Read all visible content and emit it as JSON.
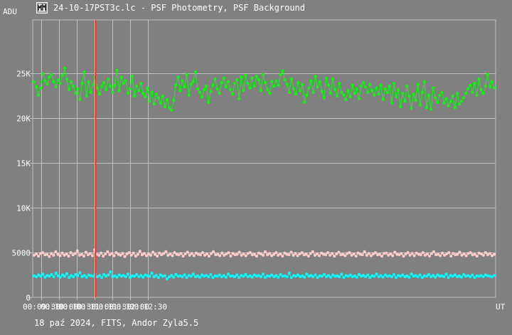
{
  "window": {
    "title": "24-10-17PST3c.lc - PSF Photometry, PSF Background",
    "icon": "light-curve-app-icon"
  },
  "footer": {
    "text": "18 paź 2024, FITS, Andor Zyla5.5"
  },
  "chart_data": {
    "type": "line",
    "ylabel": "ADU",
    "xlabel": "UT",
    "y_ticks": [
      {
        "value": 0,
        "label": "0"
      },
      {
        "value": 5000,
        "label": "5000"
      },
      {
        "value": 10000,
        "label": "10K"
      },
      {
        "value": 15000,
        "label": "15K"
      },
      {
        "value": 20000,
        "label": "20K"
      },
      {
        "value": 25000,
        "label": "25K"
      }
    ],
    "ylim": [
      0,
      31000
    ],
    "x_range_sec": [
      34156,
      34936
    ],
    "x_ticks": [
      {
        "value": 34170,
        "label": "00:09:30"
      },
      {
        "value": 34200,
        "label": "00:10:00"
      },
      {
        "value": 34230,
        "label": "00:10:30"
      },
      {
        "value": 34260,
        "label": "00:11:00"
      },
      {
        "value": 34290,
        "label": "00:11:30"
      },
      {
        "value": 34320,
        "label": "00:12:00"
      },
      {
        "value": 34350,
        "label": "00:12:30"
      }
    ],
    "cursor_x": 34262,
    "grid": true,
    "colors": {
      "background": "#808080",
      "grid": "#c0c0c0",
      "cursor": "#ff0000",
      "axis_text": "#ffffff"
    },
    "series": [
      {
        "color": "#00ff00",
        "values": [
          24100,
          23500,
          22600,
          23400,
          25000,
          24200,
          23800,
          24600,
          24900,
          24100,
          23500,
          24300,
          23900,
          24800,
          25600,
          24400,
          23200,
          24100,
          23600,
          22800,
          23300,
          22100,
          23900,
          25200,
          22500,
          24100,
          22900,
          23800,
          24600,
          23400,
          22700,
          23600,
          24000,
          23200,
          24400,
          23600,
          22900,
          23700,
          25400,
          23100,
          24600,
          23900,
          24200,
          22800,
          23300,
          24700,
          22500,
          23600,
          23100,
          23900,
          22800,
          22400,
          23400,
          21900,
          22900,
          21600,
          22700,
          22300,
          21700,
          22500,
          21300,
          22100,
          21200,
          20900,
          22000,
          23700,
          24600,
          23100,
          24200,
          23500,
          24900,
          22600,
          23800,
          24100,
          25200,
          23300,
          22900,
          22400,
          23200,
          23600,
          21800,
          23000,
          23700,
          24400,
          23300,
          22800,
          24000,
          24500,
          23500,
          24100,
          23200,
          22700,
          23900,
          24300,
          22200,
          24600,
          23100,
          24800,
          23900,
          23400,
          24500,
          23600,
          24700,
          24300,
          23100,
          24900,
          24000,
          23200,
          22800,
          24100,
          23600,
          24200,
          23700,
          24900,
          25300,
          24300,
          23800,
          22900,
          24400,
          23300,
          22700,
          24000,
          23100,
          23800,
          21800,
          22600,
          23400,
          24200,
          22900,
          24700,
          23500,
          24100,
          23000,
          22300,
          24500,
          23700,
          22800,
          24400,
          23200,
          22500,
          23900,
          22900,
          22600,
          22100,
          23100,
          22400,
          23700,
          22800,
          23300,
          22200,
          23600,
          24000,
          23500,
          22900,
          23800,
          23100,
          22600,
          23400,
          22700,
          23700,
          22100,
          23300,
          22900,
          23600,
          21700,
          23900,
          22400,
          23200,
          21300,
          22800,
          21900,
          23600,
          22500,
          21100,
          22700,
          22000,
          23800,
          21500,
          22900,
          24100,
          21200,
          22600,
          21000,
          23400,
          22300,
          21800,
          22600,
          22900,
          21700,
          22200,
          21400,
          21900,
          22500,
          21200,
          22800,
          21600,
          21900,
          22300,
          22800,
          23300,
          23700,
          22900,
          23900,
          22600,
          24400,
          23200,
          22800,
          23600,
          24900,
          23500,
          24100,
          23400
        ],
        "markers": true
      },
      {
        "color": "#ffcccc",
        "values": [
          4700,
          4850,
          4600,
          4900,
          5000,
          4750,
          4800,
          4550,
          4900,
          4700,
          5100,
          4800,
          4650,
          4950,
          4700,
          4850,
          4600,
          5000,
          4750,
          4900,
          5200,
          4700,
          4800,
          4600,
          5050,
          4750,
          4900,
          4650,
          5300,
          4800,
          4700,
          4950,
          4600,
          4850,
          5100,
          4750,
          4900,
          4650,
          5000,
          4800,
          4700,
          4900,
          4550,
          4850,
          5000,
          4700,
          4950,
          4600,
          4800,
          5150,
          4750,
          4900,
          4650,
          4850,
          4700,
          5050,
          4800,
          4600,
          4950,
          4750,
          4900,
          5100,
          4700,
          4850,
          4650,
          5000,
          4800,
          4750,
          4900,
          4600,
          4850,
          5050,
          4700,
          4900,
          4650,
          4950,
          4800,
          4750,
          5000,
          4700,
          4850,
          4600,
          4900,
          5100,
          4750,
          4800,
          4650,
          4950,
          4700,
          4850,
          5000,
          4600,
          4900,
          4750,
          4800,
          5050,
          4700,
          4850,
          4650,
          4900,
          5000,
          4750,
          4800,
          4600,
          4950,
          4850,
          4700,
          5100,
          4750,
          4900,
          4650,
          4800,
          5000,
          4700,
          4850,
          4600,
          4950,
          4800,
          4750,
          5050,
          4700,
          4900,
          4650,
          4850,
          5000,
          4750,
          4800,
          4600,
          4900,
          5100,
          4700,
          4850,
          4650,
          4950,
          4800,
          4750,
          5000,
          4700,
          4900,
          4600,
          4850,
          5050,
          4750,
          4800,
          4650,
          4900,
          5000,
          4700,
          4850,
          4600,
          4950,
          4800,
          4750,
          5100,
          4700,
          4900,
          4650,
          4850,
          5000,
          4750,
          4800,
          4600,
          4900,
          4950,
          4700,
          4850,
          4650,
          5050,
          4800,
          4750,
          4900,
          4600,
          4850,
          5000,
          4700,
          4900,
          4650,
          4950,
          4800,
          4750,
          5000,
          4700,
          4850,
          4600,
          4900,
          5100,
          4750,
          4800,
          4650,
          4950,
          4700,
          4850,
          5000,
          4600,
          4900,
          4750,
          4800,
          5050,
          4700,
          4850,
          4650,
          4900,
          5000,
          4750,
          4800,
          4600,
          4950,
          4850,
          4700,
          5000,
          4750,
          4900,
          4650,
          4800
        ],
        "markers": true
      },
      {
        "color": "#00ffff",
        "values": [
          2400,
          2300,
          2500,
          2350,
          2600,
          2250,
          2450,
          2350,
          2550,
          2300,
          2700,
          2400,
          2250,
          2500,
          2350,
          2650,
          2200,
          2450,
          2300,
          2550,
          2400,
          2750,
          2300,
          2450,
          2250,
          2500,
          2400,
          2350,
          2600,
          2300,
          2450,
          2200,
          2550,
          2350,
          2500,
          2850,
          2300,
          2400,
          2250,
          2500,
          2350,
          2450,
          2300,
          2600,
          2200,
          2400,
          2350,
          2550,
          2300,
          2450,
          2250,
          2500,
          2400,
          2350,
          2700,
          2300,
          2450,
          2200,
          2500,
          2350,
          2400,
          2050,
          2300,
          2450,
          2250,
          2550,
          2350,
          2400,
          2300,
          2500,
          2200,
          2450,
          2350,
          2600,
          2300,
          2400,
          2250,
          2500,
          2350,
          2450,
          2300,
          2550,
          2200,
          2400,
          2350,
          2500,
          2300,
          2450,
          2250,
          2600,
          2350,
          2400,
          2300,
          2500,
          2200,
          2450,
          2350,
          2550,
          2300,
          2400,
          2250,
          2500,
          2350,
          2450,
          2300,
          2600,
          2200,
          2400,
          2350,
          2500,
          2300,
          2450,
          2250,
          2550,
          2350,
          2400,
          2300,
          2700,
          2200,
          2450,
          2350,
          2500,
          2300,
          2400,
          2250,
          2600,
          2350,
          2450,
          2300,
          2500,
          2200,
          2400,
          2350,
          2550,
          2300,
          2450,
          2250,
          2500,
          2350,
          2400,
          2300,
          2600,
          2200,
          2450,
          2350,
          2500,
          2300,
          2400,
          2250,
          2550,
          2350,
          2450,
          2300,
          2500,
          2200,
          2400,
          2350,
          2600,
          2300,
          2450,
          2250,
          2500,
          2350,
          2400,
          2300,
          2550,
          2200,
          2450,
          2350,
          2500,
          2300,
          2400,
          2250,
          2600,
          2350,
          2450,
          2300,
          2500,
          2200,
          2400,
          2350,
          2550,
          2300,
          2450,
          2250,
          2500,
          2350,
          2400,
          2300,
          2600,
          2200,
          2450,
          2350,
          2500,
          2300,
          2400,
          2250,
          2550,
          2350,
          2450,
          2300,
          2500,
          2200,
          2400,
          2350,
          2450,
          2300,
          2500,
          2400,
          2350,
          2300,
          2450
        ],
        "markers": true
      }
    ]
  }
}
